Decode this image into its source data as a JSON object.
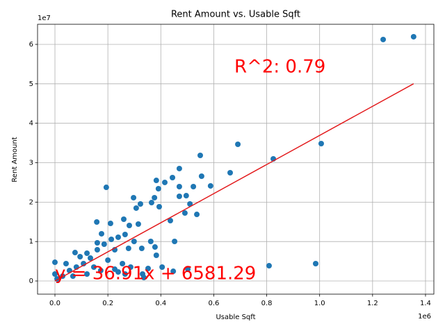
{
  "chart_data": {
    "type": "scatter",
    "title": "Rent Amount vs. Usable Sqft",
    "x_label": "Usable Sqft",
    "y_label": "Rent Amount",
    "x_offset_label": "1e6",
    "y_offset_label": "1e7",
    "color": "#1f77b4",
    "grid": true,
    "xlim": [
      -65700,
      1431600
    ],
    "ylim": [
      -3340000,
      65100000
    ],
    "xticks": [
      {
        "value": 0,
        "label": "0.0"
      },
      {
        "value": 200000,
        "label": "0.2"
      },
      {
        "value": 400000,
        "label": "0.4"
      },
      {
        "value": 600000,
        "label": "0.6"
      },
      {
        "value": 800000,
        "label": "0.8"
      },
      {
        "value": 1000000,
        "label": "1.0"
      },
      {
        "value": 1200000,
        "label": "1.2"
      },
      {
        "value": 1400000,
        "label": "1.4"
      }
    ],
    "yticks": [
      0,
      {
        "value": 10000000,
        "label": "1"
      },
      {
        "value": 20000000,
        "label": "2"
      },
      {
        "value": 30000000,
        "label": "3"
      },
      {
        "value": 40000000,
        "label": "4"
      },
      {
        "value": 50000000,
        "label": "5"
      },
      {
        "value": 60000000,
        "label": "6"
      }
    ],
    "x": [
      1355000,
      1240000,
      691000,
      1006000,
      825000,
      549000,
      470000,
      662000,
      554000,
      588000,
      523000,
      470000,
      444000,
      415000,
      383000,
      391000,
      194000,
      297000,
      376000,
      365000,
      394000,
      323000,
      307000,
      470000,
      496000,
      510000,
      491000,
      536000,
      436000,
      260000,
      210000,
      158000,
      281000,
      315000,
      265000,
      176000,
      299000,
      362000,
      452000,
      378000,
      328000,
      278000,
      383000,
      76000,
      255000,
      286000,
      405000,
      352000,
      502000,
      809000,
      985000,
      447000,
      331000,
      336000,
      0,
      0,
      8000,
      29000,
      55000,
      81000,
      108000,
      134000,
      160000,
      186000,
      213000,
      239000,
      173000,
      121000,
      68000,
      226000,
      200000,
      147000,
      95000,
      42000,
      265000,
      239000,
      121000,
      160000,
      226000
    ],
    "values": [
      61940000,
      61240000,
      34660000,
      34840000,
      30970000,
      31850000,
      28510000,
      27450000,
      26570000,
      24110000,
      23930000,
      23930000,
      26220000,
      24990000,
      25510000,
      23400000,
      23750000,
      21120000,
      21120000,
      19880000,
      18830000,
      19530000,
      18480000,
      21470000,
      21640000,
      19530000,
      17240000,
      16890000,
      15310000,
      15660000,
      14600000,
      14960000,
      14080000,
      14430000,
      11790000,
      11970000,
      10030000,
      10030000,
      10030000,
      8620000,
      8270000,
      8270000,
      6510000,
      7210000,
      4400000,
      3520000,
      3520000,
      3170000,
      2990000,
      3870000,
      4400000,
      2460000,
      1760000,
      880000,
      4750000,
      1760000,
      530000,
      1230000,
      2640000,
      3520000,
      4400000,
      5810000,
      7920000,
      9330000,
      10560000,
      11090000,
      2640000,
      1760000,
      1230000,
      2990000,
      5280000,
      3520000,
      6160000,
      4400000,
      1760000,
      2290000,
      7040000,
      9680000,
      7920000
    ],
    "fit_line": {
      "color": "#e31a1c",
      "x": [
        0,
        1355000
      ],
      "values": [
        6581.29,
        50019631
      ]
    },
    "annotations": [
      "R^2: 0.79",
      "y = 36.91x + 6581.29"
    ],
    "annotation_color": "#ff0000"
  }
}
